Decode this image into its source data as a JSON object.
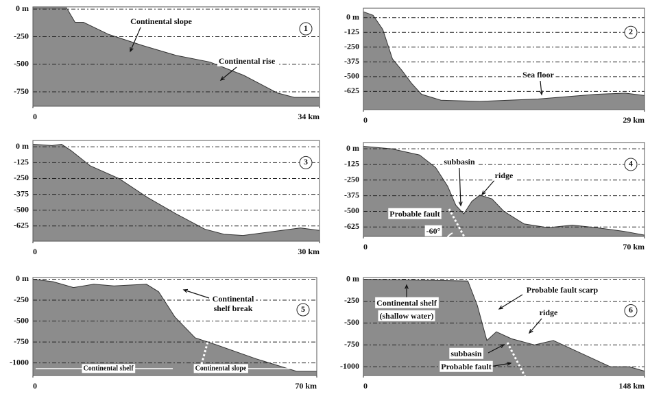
{
  "chart_data": [
    {
      "type": "area",
      "panel": "1",
      "x": [
        0,
        4,
        5,
        6,
        9,
        13,
        17,
        21,
        25,
        29,
        31,
        34
      ],
      "values": [
        10,
        10,
        -120,
        -120,
        -230,
        -330,
        -420,
        -480,
        -600,
        -760,
        -800,
        -800
      ],
      "xlim": [
        0,
        34
      ],
      "ylim": [
        -880,
        20
      ],
      "xticks": [
        0,
        {
          "value": 34,
          "label": "34 km"
        }
      ],
      "yticks": [
        {
          "value": 0,
          "label": "0 m"
        },
        -250,
        -500,
        -750
      ],
      "annotations": [
        [
          "Continental slope"
        ],
        [
          "Continental rise"
        ]
      ]
    },
    {
      "type": "area",
      "panel": "2",
      "x": [
        0,
        1,
        2,
        3,
        4,
        5,
        6,
        8,
        12,
        18,
        24,
        27,
        29
      ],
      "values": [
        50,
        20,
        -100,
        -350,
        -450,
        -560,
        -650,
        -700,
        -710,
        -690,
        -650,
        -640,
        -660
      ],
      "xlim": [
        0,
        29
      ],
      "ylim": [
        -780,
        80
      ],
      "xticks": [
        0,
        {
          "value": 29,
          "label": "29 km"
        }
      ],
      "yticks": [
        {
          "value": 0,
          "label": "0 m"
        },
        -125,
        -250,
        -375,
        -500,
        -625
      ],
      "annotations": [
        [
          "Sea floor"
        ]
      ]
    },
    {
      "type": "area",
      "panel": "3",
      "x": [
        0,
        2,
        3,
        4,
        6,
        9,
        12,
        15,
        18,
        20,
        22,
        25,
        28,
        30
      ],
      "values": [
        20,
        10,
        20,
        -30,
        -150,
        -250,
        -400,
        -530,
        -650,
        -690,
        -700,
        -670,
        -640,
        -660
      ],
      "xlim": [
        0,
        30
      ],
      "ylim": [
        -745,
        50
      ],
      "xticks": [
        0,
        {
          "value": 30,
          "label": "30 km"
        }
      ],
      "yticks": [
        {
          "value": 0,
          "label": "0 m"
        },
        -125,
        -250,
        -375,
        -500,
        -625
      ],
      "annotations": []
    },
    {
      "type": "area",
      "panel": "4",
      "x": [
        0,
        7,
        14,
        18,
        21,
        23,
        25,
        27,
        29,
        32,
        35,
        40,
        46,
        52,
        58,
        65,
        70
      ],
      "values": [
        20,
        0,
        -50,
        -150,
        -300,
        -450,
        -520,
        -420,
        -370,
        -400,
        -500,
        -600,
        -630,
        -610,
        -630,
        -660,
        -690
      ],
      "xlim": [
        0,
        70
      ],
      "ylim": [
        -700,
        50
      ],
      "xticks": [
        0,
        {
          "value": 70,
          "label": "70 km"
        }
      ],
      "yticks": [
        {
          "value": 0,
          "label": "0 m"
        },
        -125,
        -250,
        -375,
        -500,
        -625
      ],
      "annotations": [
        [
          "subbasin"
        ],
        [
          "ridge"
        ],
        [
          "Probable fault"
        ],
        [
          "-60°"
        ]
      ]
    },
    {
      "type": "area",
      "panel": "5",
      "x": [
        0,
        5,
        10,
        15,
        20,
        28,
        31,
        35,
        40,
        45,
        55,
        65,
        70
      ],
      "values": [
        0,
        -30,
        -100,
        -60,
        -80,
        -60,
        -150,
        -450,
        -700,
        -780,
        -950,
        -1100,
        -1100
      ],
      "xlim": [
        0,
        70
      ],
      "ylim": [
        -1150,
        20
      ],
      "xticks": [
        0,
        {
          "value": 70,
          "label": "70 km"
        }
      ],
      "yticks": [
        {
          "value": 0,
          "label": "0 m"
        },
        -250,
        -500,
        -750,
        -1000
      ],
      "annotations": [
        [
          "Continental",
          "shelf break"
        ],
        [
          "Continental shelf"
        ],
        [
          "Continental slope"
        ]
      ]
    },
    {
      "type": "area",
      "panel": "6",
      "x": [
        0,
        30,
        55,
        60,
        65,
        70,
        78,
        90,
        100,
        110,
        120,
        130,
        140,
        148
      ],
      "values": [
        0,
        -10,
        -20,
        -300,
        -700,
        -600,
        -680,
        -750,
        -700,
        -800,
        -900,
        -1000,
        -1000,
        -1050
      ],
      "xlim": [
        0,
        148
      ],
      "ylim": [
        -1100,
        20
      ],
      "xticks": [
        0,
        {
          "value": 148,
          "label": "148 km"
        }
      ],
      "yticks": [
        {
          "value": 0,
          "label": "0 m"
        },
        -250,
        -500,
        -750,
        -1000
      ],
      "annotations": [
        [
          "Continental shelf",
          "(shallow water)"
        ],
        [
          "Probable fault scarp"
        ],
        [
          "ridge"
        ],
        [
          "subbasin"
        ],
        [
          "Probable fault"
        ]
      ]
    }
  ]
}
